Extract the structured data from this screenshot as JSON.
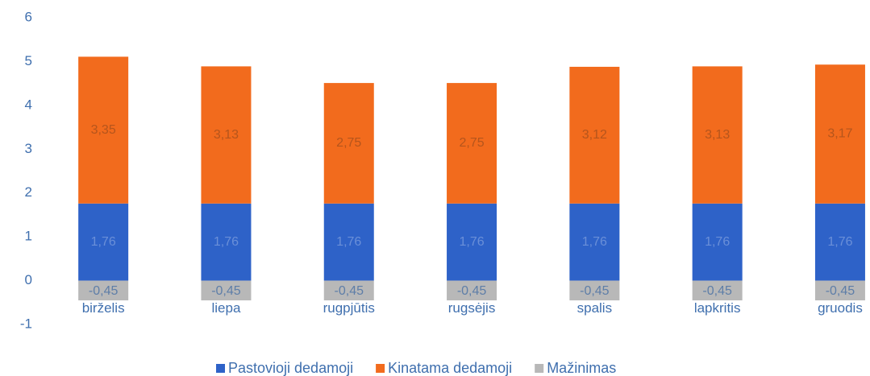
{
  "chart_data": {
    "type": "stacked_bar",
    "categories": [
      "birželis",
      "liepa",
      "rugpjūtis",
      "rugsėjis",
      "spalis",
      "lapkritis",
      "gruodis"
    ],
    "series": [
      {
        "name": "Pastovioji dedamoji",
        "color": "#2e62c8",
        "values": [
          1.76,
          1.76,
          1.76,
          1.76,
          1.76,
          1.76,
          1.76
        ],
        "value_labels": [
          "1,76",
          "1,76",
          "1,76",
          "1,76",
          "1,76",
          "1,76",
          "1,76"
        ]
      },
      {
        "name": "Kinatama dedamoji",
        "color": "#f26b1d",
        "values": [
          3.35,
          3.13,
          2.75,
          2.75,
          3.12,
          3.13,
          3.17
        ],
        "value_labels": [
          "3,35",
          "3,13",
          "2,75",
          "2,75",
          "3,12",
          "3,13",
          "3,17"
        ]
      },
      {
        "name": "Mažinimas",
        "color": "#b8b8b8",
        "values": [
          -0.45,
          -0.45,
          -0.45,
          -0.45,
          -0.45,
          -0.45,
          -0.45
        ],
        "value_labels": [
          "-0,45",
          "-0,45",
          "-0,45",
          "-0,45",
          "-0,45",
          "-0,45",
          "-0,45"
        ]
      }
    ],
    "ylim": [
      -1,
      6
    ],
    "yticks": [
      -1,
      0,
      1,
      2,
      3,
      4,
      5,
      6
    ],
    "legend": "bottom"
  }
}
